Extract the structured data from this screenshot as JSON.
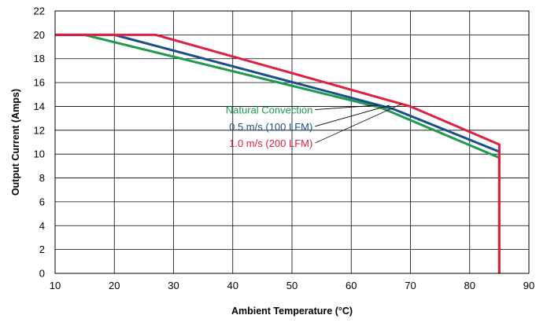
{
  "chart_data": {
    "type": "line",
    "xlabel": "Ambient Temperature (°C)",
    "ylabel": "Output Current (Amps)",
    "xlim": [
      10,
      90
    ],
    "ylim": [
      0,
      22
    ],
    "x_ticks": [
      10,
      20,
      30,
      40,
      50,
      60,
      70,
      80,
      90
    ],
    "y_ticks": [
      0,
      2,
      4,
      6,
      8,
      10,
      12,
      14,
      16,
      18,
      20,
      22
    ],
    "grid": true,
    "series": [
      {
        "name": "Natural Convection",
        "color": "#1f9a4e",
        "points": [
          [
            10,
            20
          ],
          [
            15,
            20
          ],
          [
            65,
            13.9
          ],
          [
            85,
            9.7
          ],
          [
            85,
            0
          ]
        ]
      },
      {
        "name": "0.5 m/s (100 LFM)",
        "color": "#1a4f8a",
        "points": [
          [
            10,
            20
          ],
          [
            20,
            20
          ],
          [
            67,
            13.8
          ],
          [
            85,
            10.2
          ],
          [
            85,
            0
          ]
        ]
      },
      {
        "name": "1.0 m/s (200 LFM)",
        "color": "#e0203f",
        "points": [
          [
            10,
            20
          ],
          [
            27,
            20
          ],
          [
            70,
            14
          ],
          [
            85,
            10.8
          ],
          [
            85,
            0
          ]
        ]
      }
    ],
    "annotations": [
      {
        "text": "Natural Convection",
        "series": 0,
        "label_at": [
          53.5,
          13.4
        ],
        "line_to": [
          64.5,
          14.1
        ]
      },
      {
        "text": "0.5 m/s (100 LFM)",
        "series": 1,
        "label_at": [
          53.5,
          12.0
        ],
        "line_to": [
          66.5,
          14.1
        ]
      },
      {
        "text": "1.0 m/s (200 LFM)",
        "series": 2,
        "label_at": [
          53.5,
          10.6
        ],
        "line_to": [
          68.5,
          14.2
        ]
      }
    ]
  }
}
